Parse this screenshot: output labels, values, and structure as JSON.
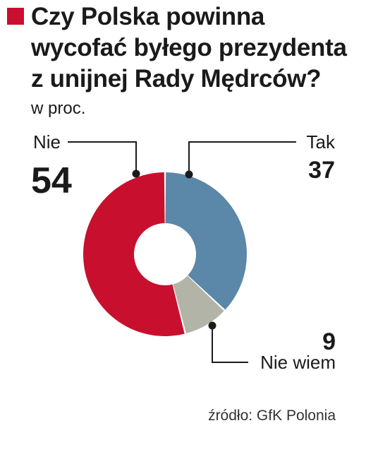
{
  "chart_data": {
    "type": "pie",
    "variant": "donut",
    "title": "Czy Polska powinna wycofać byłego prezydenta z unijnej Rady Mędrców?",
    "subtitle": "w proc.",
    "slices": [
      {
        "label": "Tak",
        "value": 37,
        "color": "#5b87a8"
      },
      {
        "label": "Nie wiem",
        "value": 9,
        "color": "#b2b4a8"
      },
      {
        "label": "Nie",
        "value": 54,
        "color": "#c8102e"
      }
    ],
    "highlight_color": "#c8102e",
    "source": "źródło: GfK Polonia"
  }
}
